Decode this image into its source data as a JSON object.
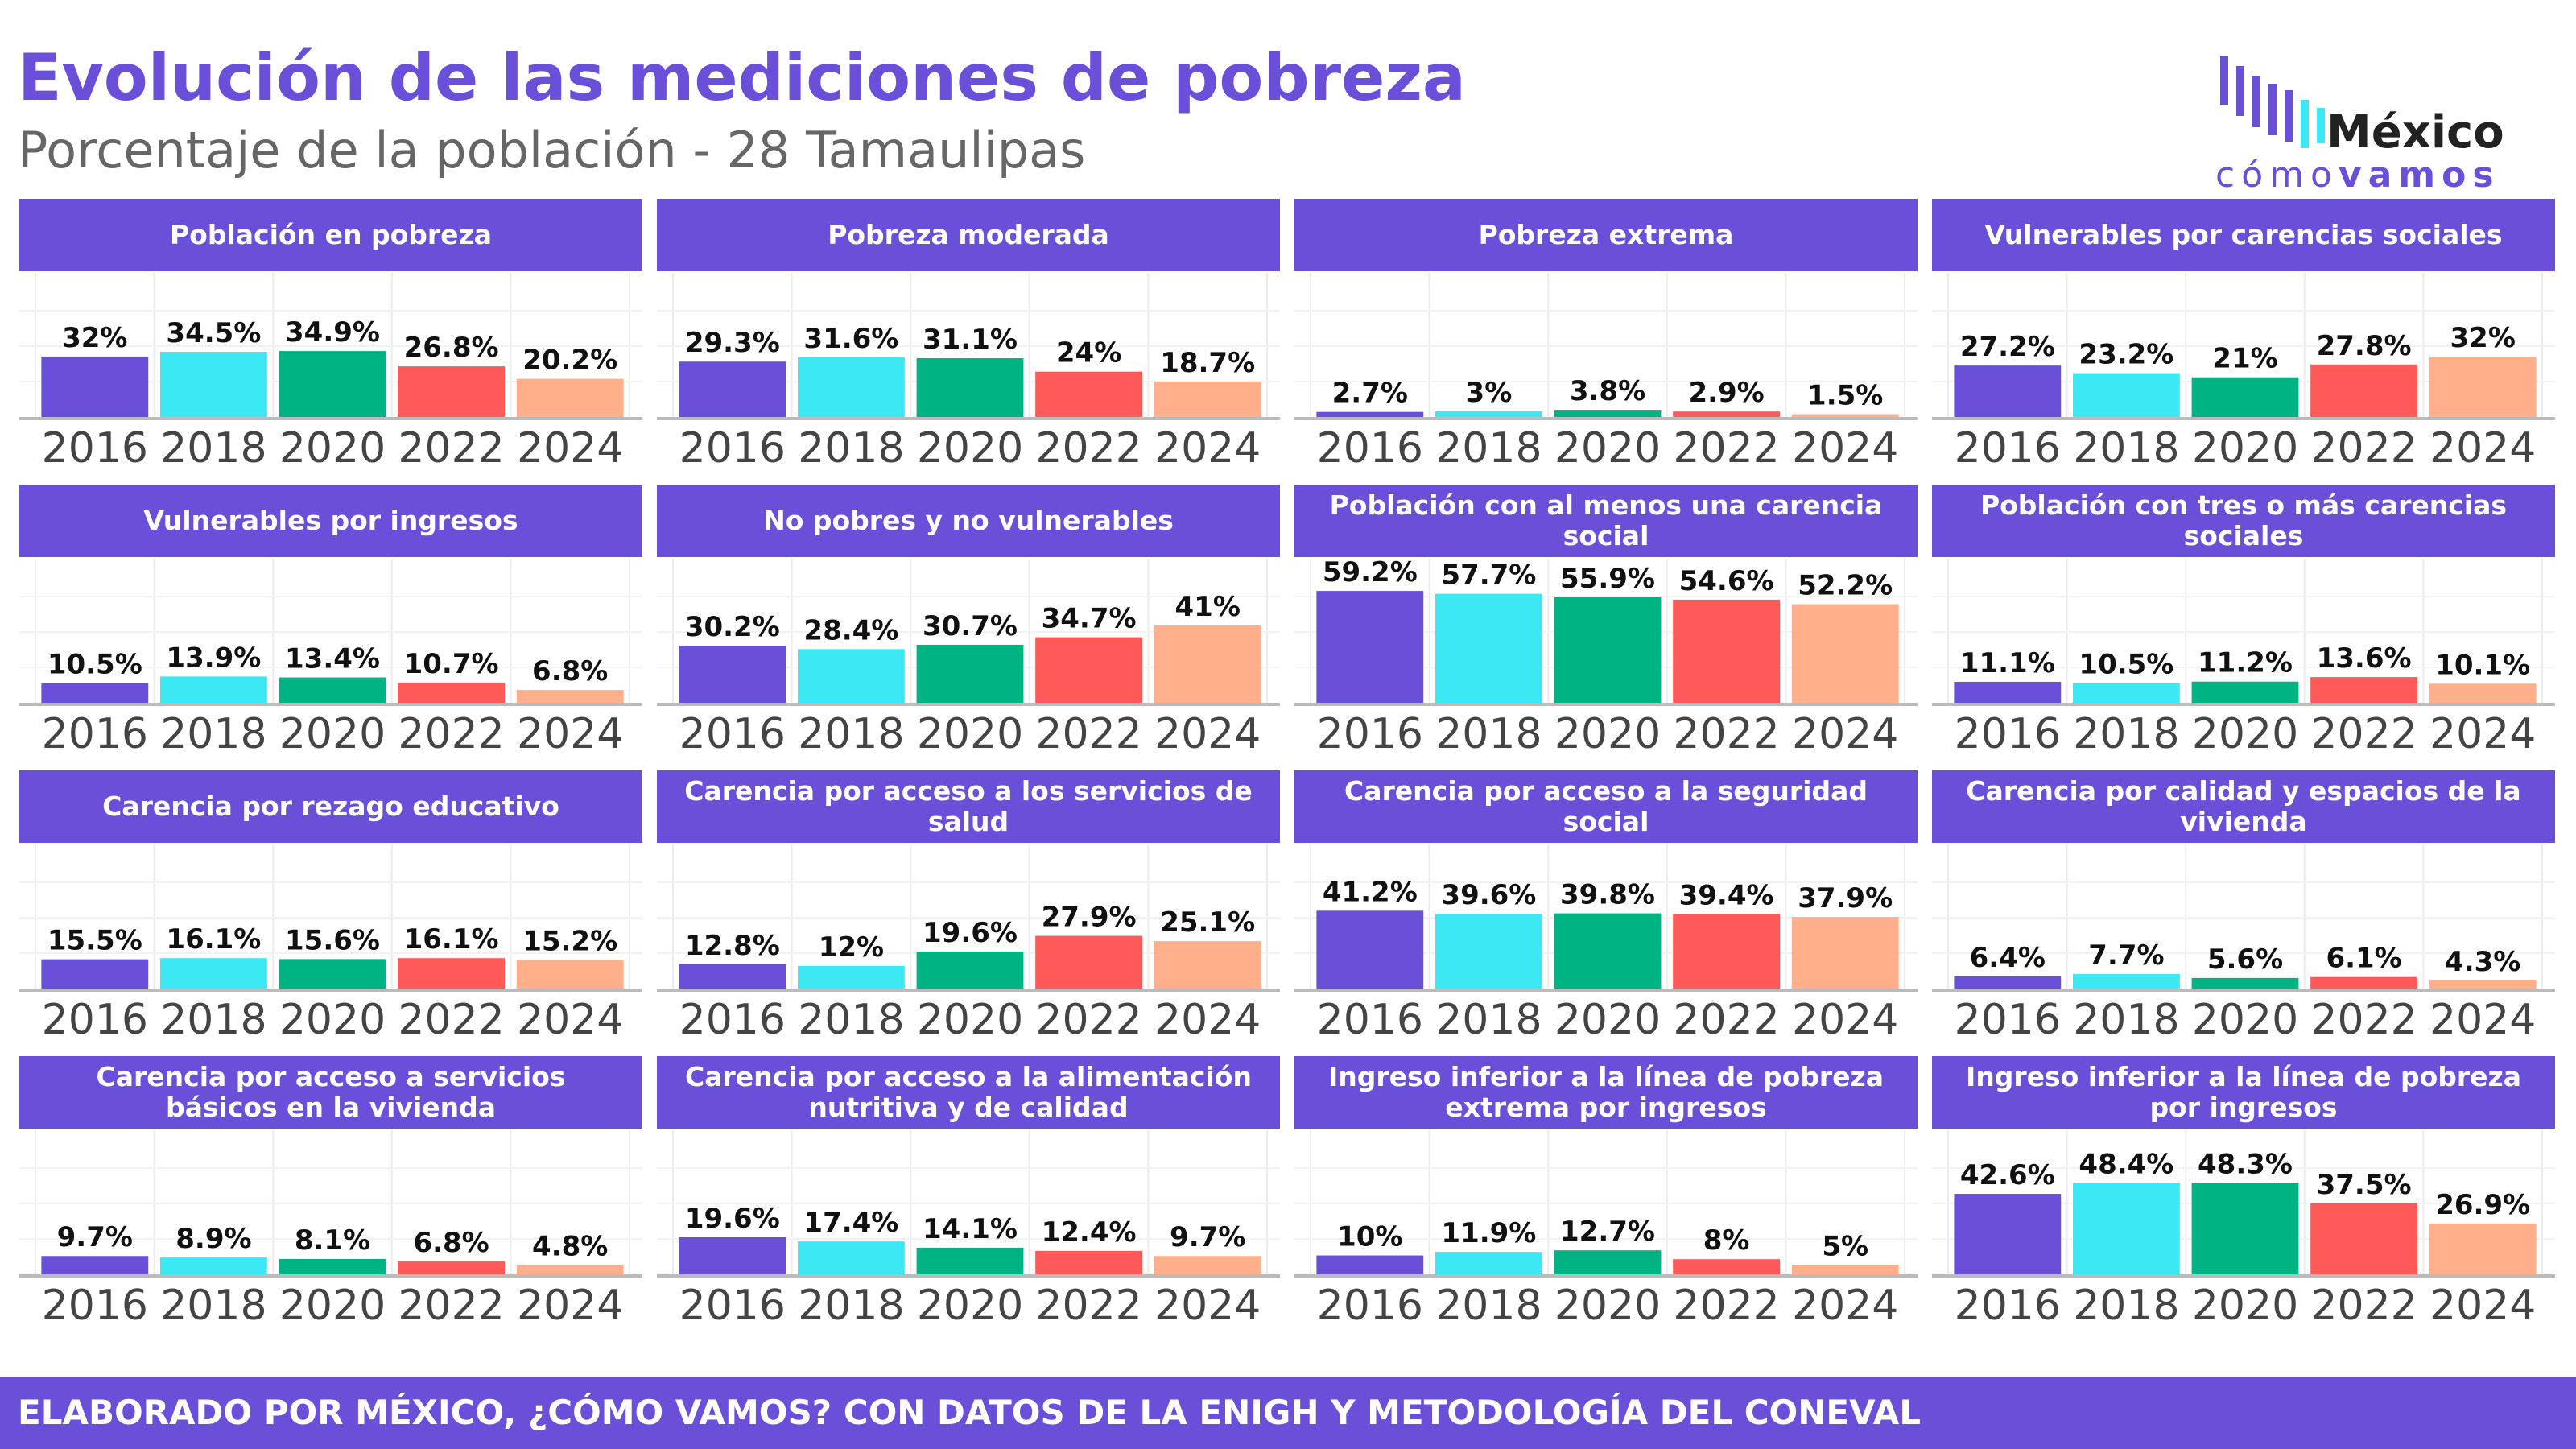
{
  "title": "Evolución de las mediciones de pobreza",
  "subtitle": "Porcentaje de la población - 28 Tamaulipas",
  "footer": "ELABORADO POR MÉXICO, ¿CÓMO VAMOS? CON DATOS DE LA ENIGH Y METODOLOGÍA DEL CONEVAL",
  "logo": {
    "name": "México",
    "tag_a": "cómo",
    "tag_b": "vamos"
  },
  "palette": [
    "#6a4fd8",
    "#3de8f5",
    "#00b383",
    "#ff5a5a",
    "#ffb08a"
  ],
  "chart_data": [
    {
      "type": "bar",
      "title": "Población en pobreza",
      "categories": [
        "2016",
        "2018",
        "2020",
        "2022",
        "2024"
      ],
      "values": [
        32,
        34.5,
        34.9,
        26.8,
        20.2
      ],
      "value_labels": [
        "32%",
        "34.5%",
        "34.9%",
        "26.8%",
        "20.2%"
      ],
      "ylim": [
        0,
        75
      ]
    },
    {
      "type": "bar",
      "title": "Pobreza moderada",
      "categories": [
        "2016",
        "2018",
        "2020",
        "2022",
        "2024"
      ],
      "values": [
        29.3,
        31.6,
        31.1,
        24,
        18.7
      ],
      "value_labels": [
        "29.3%",
        "31.6%",
        "31.1%",
        "24%",
        "18.7%"
      ],
      "ylim": [
        0,
        75
      ]
    },
    {
      "type": "bar",
      "title": "Pobreza extrema",
      "categories": [
        "2016",
        "2018",
        "2020",
        "2022",
        "2024"
      ],
      "values": [
        2.7,
        3,
        3.8,
        2.9,
        1.5
      ],
      "value_labels": [
        "2.7%",
        "3%",
        "3.8%",
        "2.9%",
        "1.5%"
      ],
      "ylim": [
        0,
        75
      ]
    },
    {
      "type": "bar",
      "title": "Vulnerables por carencias sociales",
      "categories": [
        "2016",
        "2018",
        "2020",
        "2022",
        "2024"
      ],
      "values": [
        27.2,
        23.2,
        21,
        27.8,
        32
      ],
      "value_labels": [
        "27.2%",
        "23.2%",
        "21%",
        "27.8%",
        "32%"
      ],
      "ylim": [
        0,
        75
      ]
    },
    {
      "type": "bar",
      "title": "Vulnerables por ingresos",
      "categories": [
        "2016",
        "2018",
        "2020",
        "2022",
        "2024"
      ],
      "values": [
        10.5,
        13.9,
        13.4,
        10.7,
        6.8
      ],
      "value_labels": [
        "10.5%",
        "13.9%",
        "13.4%",
        "10.7%",
        "6.8%"
      ],
      "ylim": [
        0,
        75
      ]
    },
    {
      "type": "bar",
      "title": "No pobres y no vulnerables",
      "categories": [
        "2016",
        "2018",
        "2020",
        "2022",
        "2024"
      ],
      "values": [
        30.2,
        28.4,
        30.7,
        34.7,
        41
      ],
      "value_labels": [
        "30.2%",
        "28.4%",
        "30.7%",
        "34.7%",
        "41%"
      ],
      "ylim": [
        0,
        75
      ]
    },
    {
      "type": "bar",
      "title": "Población con al menos una carencia social",
      "categories": [
        "2016",
        "2018",
        "2020",
        "2022",
        "2024"
      ],
      "values": [
        59.2,
        57.7,
        55.9,
        54.6,
        52.2
      ],
      "value_labels": [
        "59.2%",
        "57.7%",
        "55.9%",
        "54.6%",
        "52.2%"
      ],
      "ylim": [
        0,
        75
      ]
    },
    {
      "type": "bar",
      "title": "Población con tres o más carencias sociales",
      "categories": [
        "2016",
        "2018",
        "2020",
        "2022",
        "2024"
      ],
      "values": [
        11.1,
        10.5,
        11.2,
        13.6,
        10.1
      ],
      "value_labels": [
        "11.1%",
        "10.5%",
        "11.2%",
        "13.6%",
        "10.1%"
      ],
      "ylim": [
        0,
        75
      ]
    },
    {
      "type": "bar",
      "title": "Carencia por rezago educativo",
      "categories": [
        "2016",
        "2018",
        "2020",
        "2022",
        "2024"
      ],
      "values": [
        15.5,
        16.1,
        15.6,
        16.1,
        15.2
      ],
      "value_labels": [
        "15.5%",
        "16.1%",
        "15.6%",
        "16.1%",
        "15.2%"
      ],
      "ylim": [
        0,
        75
      ]
    },
    {
      "type": "bar",
      "title": "Carencia por acceso a los servicios de salud",
      "categories": [
        "2016",
        "2018",
        "2020",
        "2022",
        "2024"
      ],
      "values": [
        12.8,
        12,
        19.6,
        27.9,
        25.1
      ],
      "value_labels": [
        "12.8%",
        "12%",
        "19.6%",
        "27.9%",
        "25.1%"
      ],
      "ylim": [
        0,
        75
      ]
    },
    {
      "type": "bar",
      "title": "Carencia por acceso a la seguridad social",
      "categories": [
        "2016",
        "2018",
        "2020",
        "2022",
        "2024"
      ],
      "values": [
        41.2,
        39.6,
        39.8,
        39.4,
        37.9
      ],
      "value_labels": [
        "41.2%",
        "39.6%",
        "39.8%",
        "39.4%",
        "37.9%"
      ],
      "ylim": [
        0,
        75
      ]
    },
    {
      "type": "bar",
      "title": "Carencia por calidad y espacios de la vivienda",
      "categories": [
        "2016",
        "2018",
        "2020",
        "2022",
        "2024"
      ],
      "values": [
        6.4,
        7.7,
        5.6,
        6.1,
        4.3
      ],
      "value_labels": [
        "6.4%",
        "7.7%",
        "5.6%",
        "6.1%",
        "4.3%"
      ],
      "ylim": [
        0,
        75
      ]
    },
    {
      "type": "bar",
      "title": "Carencia por acceso a servicios básicos en la vivienda",
      "categories": [
        "2016",
        "2018",
        "2020",
        "2022",
        "2024"
      ],
      "values": [
        9.7,
        8.9,
        8.1,
        6.8,
        4.8
      ],
      "value_labels": [
        "9.7%",
        "8.9%",
        "8.1%",
        "6.8%",
        "4.8%"
      ],
      "ylim": [
        0,
        75
      ]
    },
    {
      "type": "bar",
      "title": "Carencia por acceso a la alimentación nutritiva y de calidad",
      "categories": [
        "2016",
        "2018",
        "2020",
        "2022",
        "2024"
      ],
      "values": [
        19.6,
        17.4,
        14.1,
        12.4,
        9.7
      ],
      "value_labels": [
        "19.6%",
        "17.4%",
        "14.1%",
        "12.4%",
        "9.7%"
      ],
      "ylim": [
        0,
        75
      ]
    },
    {
      "type": "bar",
      "title": "Ingreso inferior a la línea de pobreza extrema por ingresos",
      "categories": [
        "2016",
        "2018",
        "2020",
        "2022",
        "2024"
      ],
      "values": [
        10,
        11.9,
        12.7,
        8,
        5
      ],
      "value_labels": [
        "10%",
        "11.9%",
        "12.7%",
        "8%",
        "5%"
      ],
      "ylim": [
        0,
        75
      ]
    },
    {
      "type": "bar",
      "title": "Ingreso inferior a la línea de pobreza por ingresos",
      "categories": [
        "2016",
        "2018",
        "2020",
        "2022",
        "2024"
      ],
      "values": [
        42.6,
        48.4,
        48.3,
        37.5,
        26.9
      ],
      "value_labels": [
        "42.6%",
        "48.4%",
        "48.3%",
        "37.5%",
        "26.9%"
      ],
      "ylim": [
        0,
        75
      ]
    }
  ]
}
